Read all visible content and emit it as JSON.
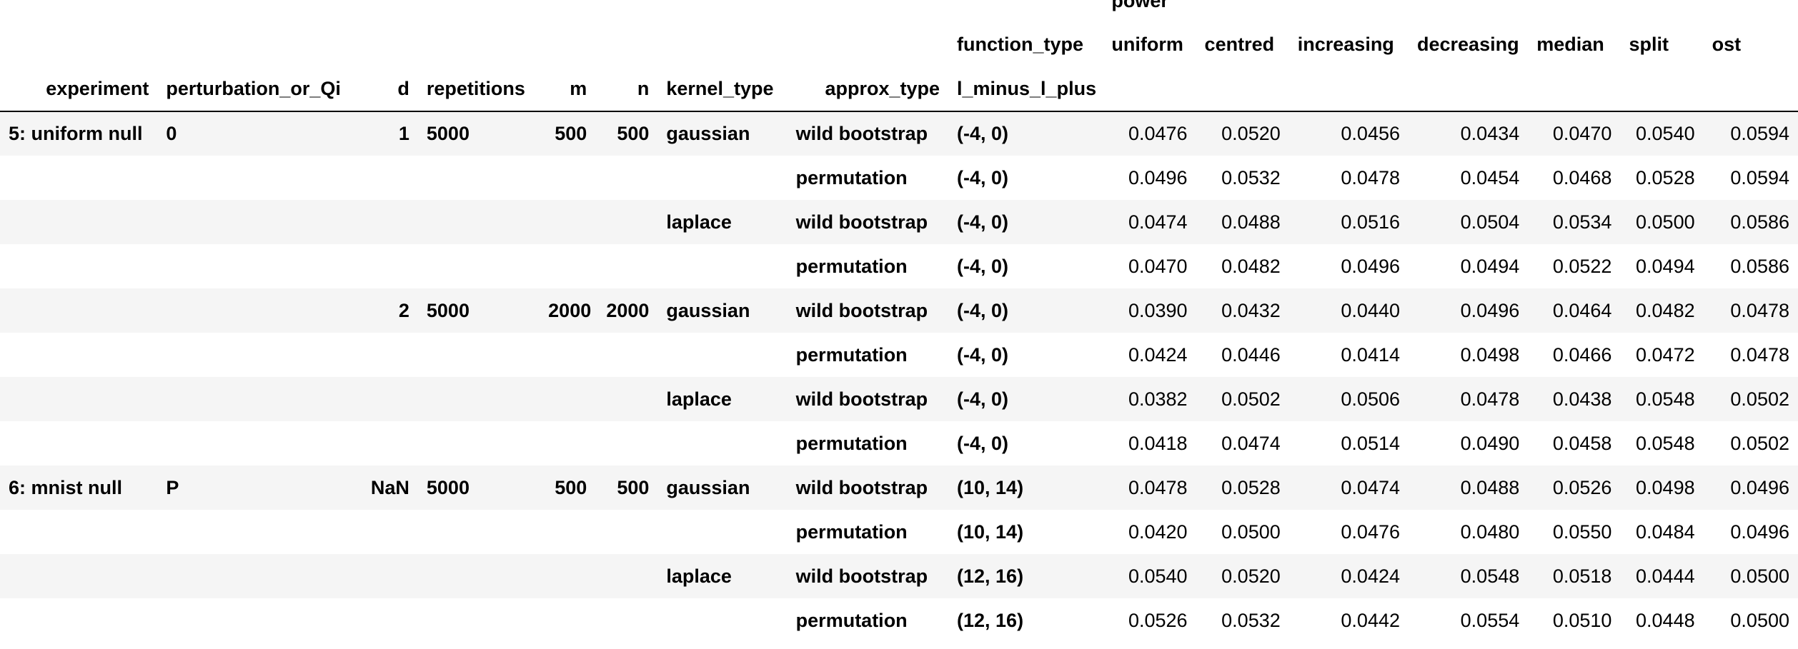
{
  "header": {
    "power_label": "power",
    "function_type_label": "function_type",
    "lml_label": "l_minus_l_plus",
    "index_names": [
      "experiment",
      "perturbation_or_Qi",
      "d",
      "repetitions",
      "m",
      "n",
      "kernel_type",
      "approx_type"
    ],
    "columns": [
      "uniform",
      "centred",
      "increasing",
      "decreasing",
      "median",
      "split",
      "ost"
    ]
  },
  "rows": [
    {
      "experiment": "5: uniform null",
      "perturbation": "0",
      "d": "1",
      "repetitions": "5000",
      "m": "500",
      "n": "500",
      "kernel": "gaussian",
      "approx": "wild bootstrap",
      "lml": "(-4, 0)",
      "values": [
        "0.0476",
        "0.0520",
        "0.0456",
        "0.0434",
        "0.0470",
        "0.0540",
        "0.0594"
      ]
    },
    {
      "experiment": "",
      "perturbation": "",
      "d": "",
      "repetitions": "",
      "m": "",
      "n": "",
      "kernel": "",
      "approx": "permutation",
      "lml": "(-4, 0)",
      "values": [
        "0.0496",
        "0.0532",
        "0.0478",
        "0.0454",
        "0.0468",
        "0.0528",
        "0.0594"
      ]
    },
    {
      "experiment": "",
      "perturbation": "",
      "d": "",
      "repetitions": "",
      "m": "",
      "n": "",
      "kernel": "laplace",
      "approx": "wild bootstrap",
      "lml": "(-4, 0)",
      "values": [
        "0.0474",
        "0.0488",
        "0.0516",
        "0.0504",
        "0.0534",
        "0.0500",
        "0.0586"
      ]
    },
    {
      "experiment": "",
      "perturbation": "",
      "d": "",
      "repetitions": "",
      "m": "",
      "n": "",
      "kernel": "",
      "approx": "permutation",
      "lml": "(-4, 0)",
      "values": [
        "0.0470",
        "0.0482",
        "0.0496",
        "0.0494",
        "0.0522",
        "0.0494",
        "0.0586"
      ]
    },
    {
      "experiment": "",
      "perturbation": "",
      "d": "2",
      "repetitions": "5000",
      "m": "2000",
      "n": "2000",
      "kernel": "gaussian",
      "approx": "wild bootstrap",
      "lml": "(-4, 0)",
      "values": [
        "0.0390",
        "0.0432",
        "0.0440",
        "0.0496",
        "0.0464",
        "0.0482",
        "0.0478"
      ]
    },
    {
      "experiment": "",
      "perturbation": "",
      "d": "",
      "repetitions": "",
      "m": "",
      "n": "",
      "kernel": "",
      "approx": "permutation",
      "lml": "(-4, 0)",
      "values": [
        "0.0424",
        "0.0446",
        "0.0414",
        "0.0498",
        "0.0466",
        "0.0472",
        "0.0478"
      ]
    },
    {
      "experiment": "",
      "perturbation": "",
      "d": "",
      "repetitions": "",
      "m": "",
      "n": "",
      "kernel": "laplace",
      "approx": "wild bootstrap",
      "lml": "(-4, 0)",
      "values": [
        "0.0382",
        "0.0502",
        "0.0506",
        "0.0478",
        "0.0438",
        "0.0548",
        "0.0502"
      ]
    },
    {
      "experiment": "",
      "perturbation": "",
      "d": "",
      "repetitions": "",
      "m": "",
      "n": "",
      "kernel": "",
      "approx": "permutation",
      "lml": "(-4, 0)",
      "values": [
        "0.0418",
        "0.0474",
        "0.0514",
        "0.0490",
        "0.0458",
        "0.0548",
        "0.0502"
      ]
    },
    {
      "experiment": "6: mnist null",
      "perturbation": "P",
      "d": "NaN",
      "repetitions": "5000",
      "m": "500",
      "n": "500",
      "kernel": "gaussian",
      "approx": "wild bootstrap",
      "lml": "(10, 14)",
      "values": [
        "0.0478",
        "0.0528",
        "0.0474",
        "0.0488",
        "0.0526",
        "0.0498",
        "0.0496"
      ]
    },
    {
      "experiment": "",
      "perturbation": "",
      "d": "",
      "repetitions": "",
      "m": "",
      "n": "",
      "kernel": "",
      "approx": "permutation",
      "lml": "(10, 14)",
      "values": [
        "0.0420",
        "0.0500",
        "0.0476",
        "0.0480",
        "0.0550",
        "0.0484",
        "0.0496"
      ]
    },
    {
      "experiment": "",
      "perturbation": "",
      "d": "",
      "repetitions": "",
      "m": "",
      "n": "",
      "kernel": "laplace",
      "approx": "wild bootstrap",
      "lml": "(12, 16)",
      "values": [
        "0.0540",
        "0.0520",
        "0.0424",
        "0.0548",
        "0.0518",
        "0.0444",
        "0.0500"
      ]
    },
    {
      "experiment": "",
      "perturbation": "",
      "d": "",
      "repetitions": "",
      "m": "",
      "n": "",
      "kernel": "",
      "approx": "permutation",
      "lml": "(12, 16)",
      "values": [
        "0.0526",
        "0.0532",
        "0.0442",
        "0.0554",
        "0.0510",
        "0.0448",
        "0.0500"
      ]
    }
  ]
}
